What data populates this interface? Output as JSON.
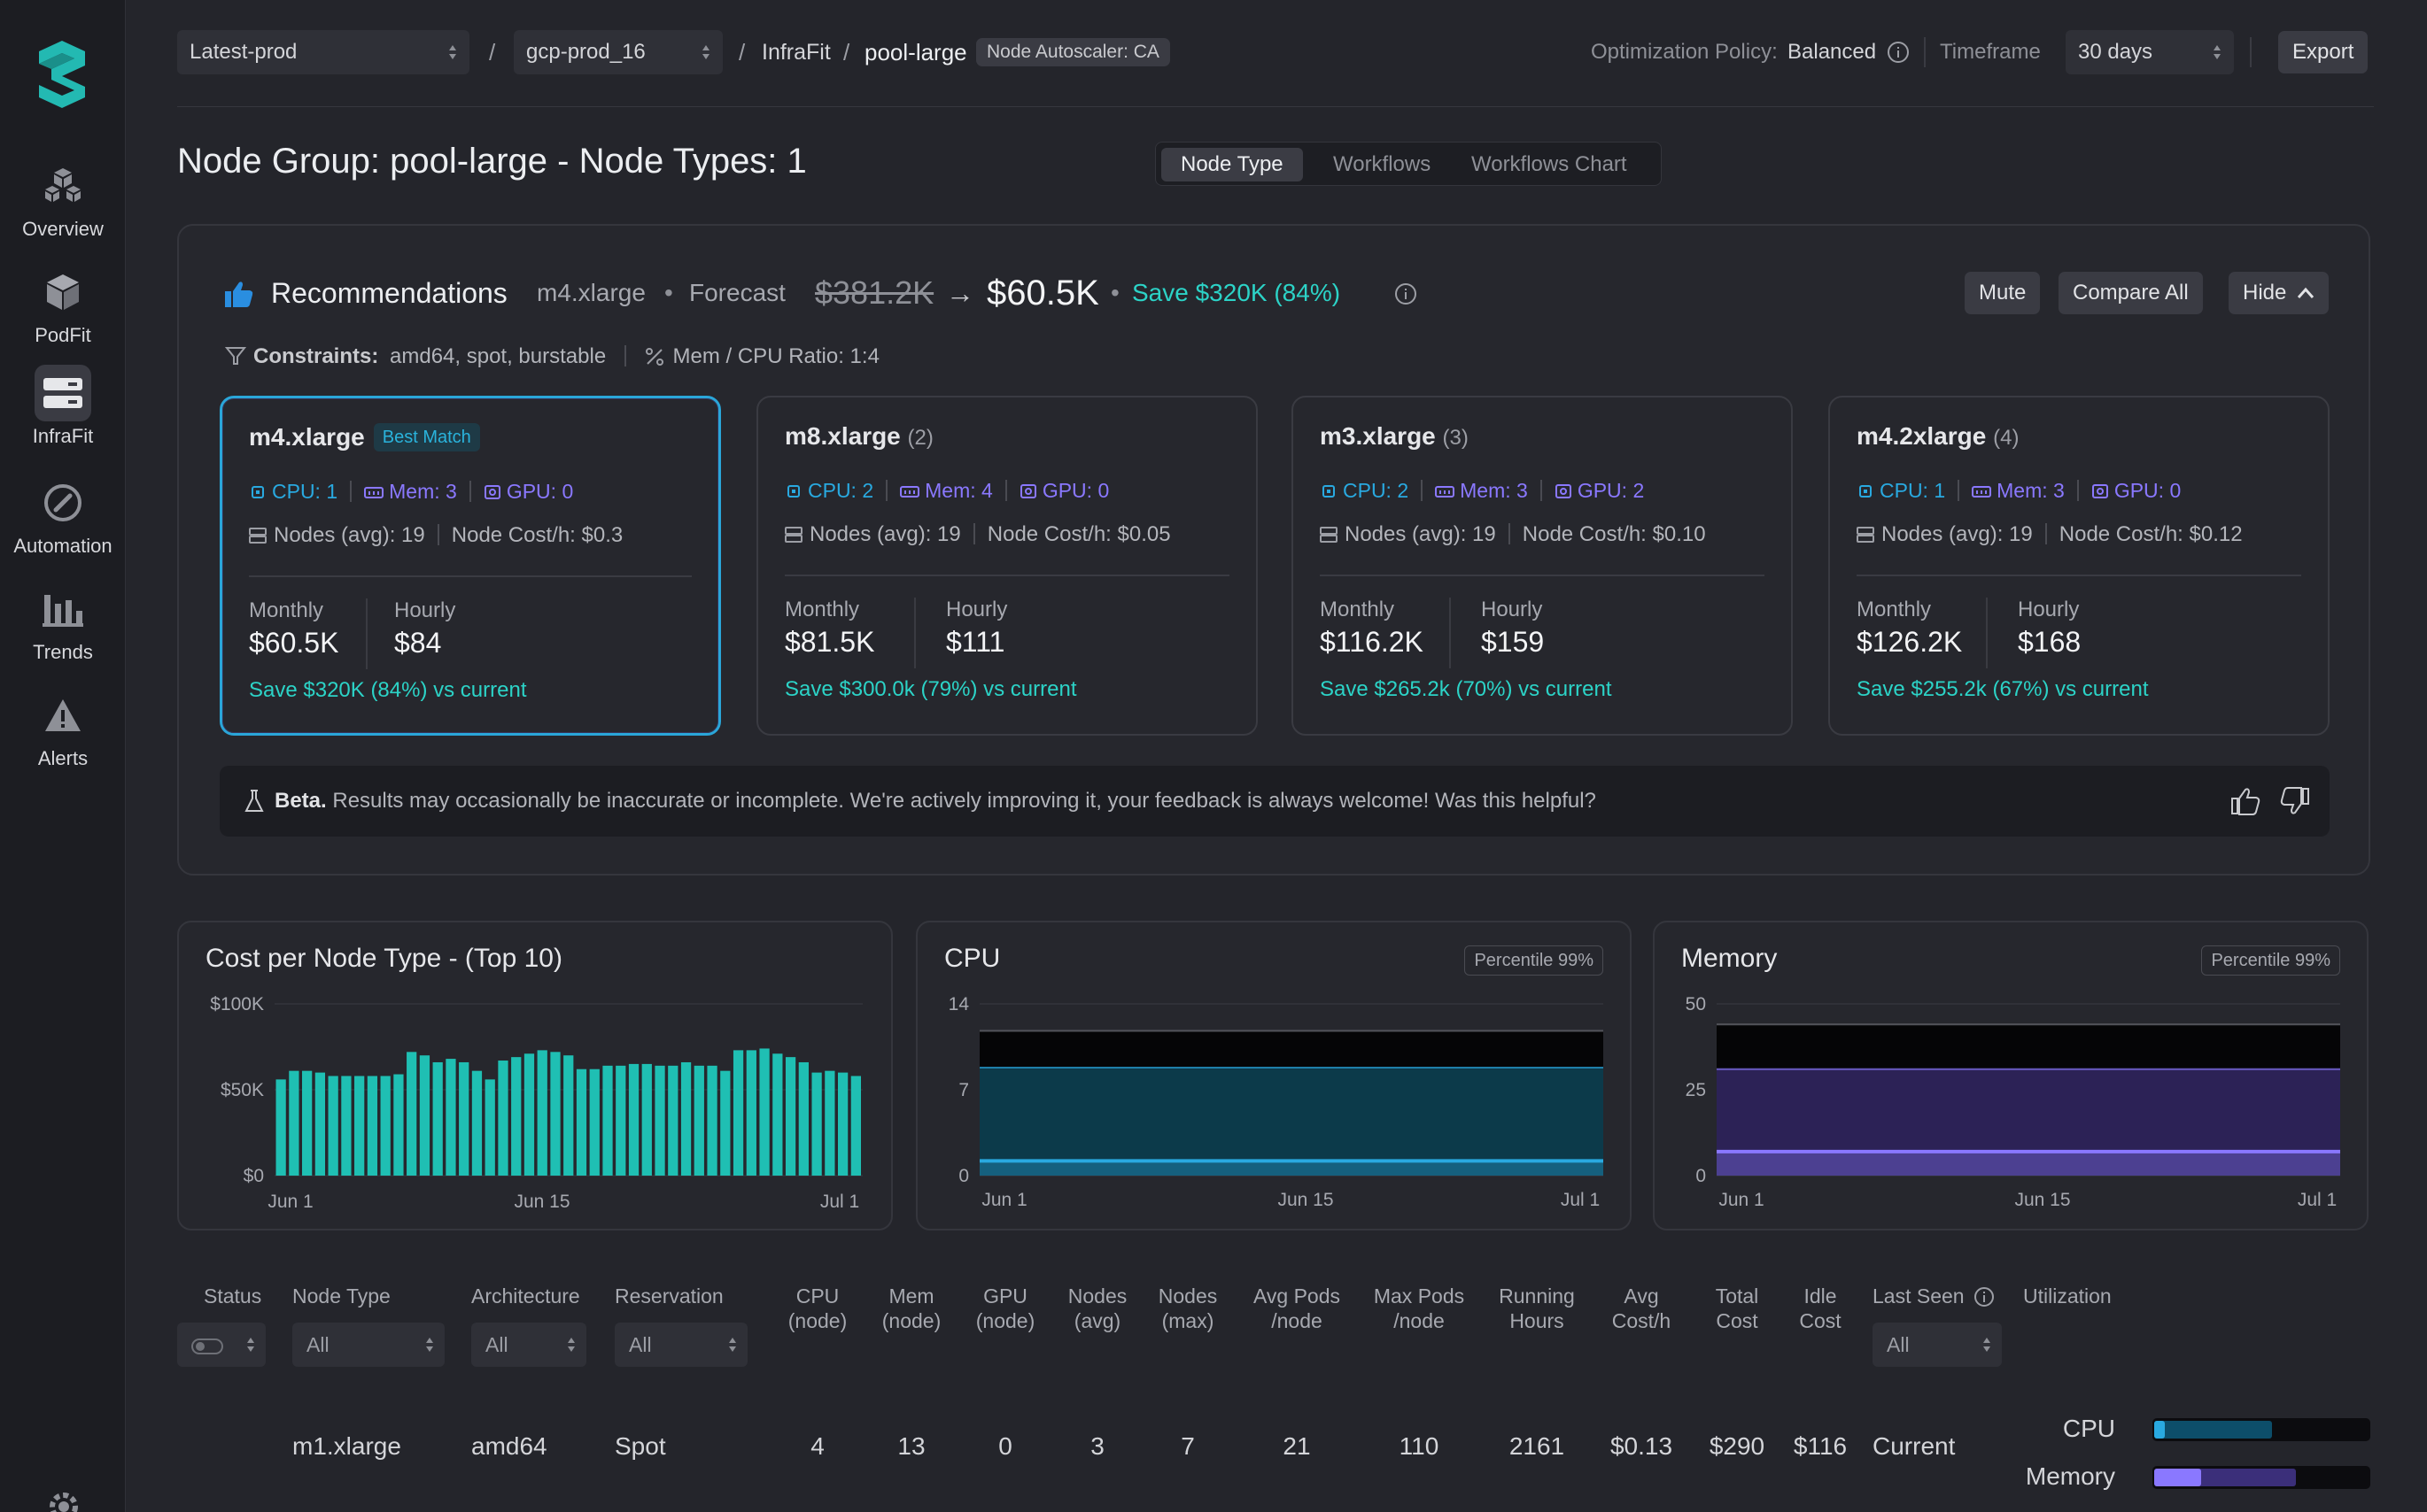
{
  "nav": {
    "items": [
      {
        "label": "Overview",
        "icon": "cubes-icon"
      },
      {
        "label": "PodFit",
        "icon": "cube-icon"
      },
      {
        "label": "InfraFit",
        "icon": "server-icon"
      },
      {
        "label": "Automation",
        "icon": "compass-icon"
      },
      {
        "label": "Trends",
        "icon": "bar-chart-icon"
      },
      {
        "label": "Alerts",
        "icon": "warning-icon"
      }
    ],
    "active": "InfraFit"
  },
  "topbar": {
    "env_select": "Latest-prod",
    "cluster_select": "gcp-prod_16",
    "sep": "/",
    "crumb_infrafit": "InfraFit",
    "crumb_pool": "pool-large",
    "autoscaler_pill": "Node Autoscaler: CA",
    "policy_label": "Optimization Policy:",
    "policy_value": "Balanced",
    "timeframe_label": "Timeframe",
    "timeframe_value": "30 days",
    "export_label": "Export"
  },
  "page": {
    "title": "Node Group: pool-large - Node Types: 1",
    "tabs": [
      "Node Type",
      "Workflows",
      "Workflows Chart"
    ],
    "active_tab": "Node Type"
  },
  "recommendations": {
    "title": "Recommendations",
    "instance": "m4.xlarge",
    "bullet": "•",
    "forecast_label": "Forecast",
    "forecast_old": "$381.2K",
    "arrow": "→",
    "forecast_new": "$60.5K",
    "save_text": "Save $320K (84%)",
    "mute_label": "Mute",
    "compare_label": "Compare All",
    "hide_label": "Hide",
    "constraints_label": "Constraints:",
    "constraints_value": "amd64, spot, burstable",
    "ratio_text": "Mem / CPU Ratio: 1:4",
    "cards": [
      {
        "name": "m4.xlarge",
        "rank": "",
        "badge": "Best Match",
        "cpu": "CPU: 1",
        "mem": "Mem: 3",
        "gpu": "GPU: 0",
        "nodes": "Nodes (avg): 19",
        "cost": "Node Cost/h: $0.3",
        "monthly_label": "Monthly",
        "monthly": "$60.5K",
        "hourly_label": "Hourly",
        "hourly": "$84",
        "save": "Save $320K (84%) vs current"
      },
      {
        "name": "m8.xlarge",
        "rank": "(2)",
        "badge": "",
        "cpu": "CPU: 2",
        "mem": "Mem: 4",
        "gpu": "GPU: 0",
        "nodes": "Nodes (avg): 19",
        "cost": "Node Cost/h: $0.05",
        "monthly_label": "Monthly",
        "monthly": "$81.5K",
        "hourly_label": "Hourly",
        "hourly": "$111",
        "save": "Save $300.0k (79%) vs current"
      },
      {
        "name": "m3.xlarge",
        "rank": "(3)",
        "badge": "",
        "cpu": "CPU: 2",
        "mem": "Mem: 3",
        "gpu": "GPU: 2",
        "nodes": "Nodes (avg): 19",
        "cost": "Node Cost/h: $0.10",
        "monthly_label": "Monthly",
        "monthly": "$116.2K",
        "hourly_label": "Hourly",
        "hourly": "$159",
        "save": "Save $265.2k (70%) vs current"
      },
      {
        "name": "m4.2xlarge",
        "rank": "(4)",
        "badge": "",
        "cpu": "CPU: 1",
        "mem": "Mem: 3",
        "gpu": "GPU: 0",
        "nodes": "Nodes (avg): 19",
        "cost": "Node Cost/h: $0.12",
        "monthly_label": "Monthly",
        "monthly": "$126.2K",
        "hourly_label": "Hourly",
        "hourly": "$168",
        "save": "Save $255.2k (67%) vs current"
      }
    ],
    "beta_label": "Beta.",
    "beta_text": "Results may occasionally be inaccurate or incomplete. We're actively improving it, your feedback is always welcome! Was this helpful?"
  },
  "colors": {
    "accent_teal": "#2cd3c7",
    "cpu_blue": "#29a9e0",
    "mem_purple": "#8a78ff",
    "bar_teal": "#1fbfb3"
  },
  "chart_data": [
    {
      "type": "bar",
      "title": "Cost per Node Type - (Top 10)",
      "x_ticks": [
        "Jun 1",
        "Jun 15",
        "Jul 1"
      ],
      "y_ticks": [
        "$100K",
        "$50K",
        "$0"
      ],
      "ylim": [
        0,
        100000
      ],
      "values": [
        56000,
        61000,
        61000,
        60000,
        58000,
        58000,
        58000,
        58000,
        58000,
        59000,
        72000,
        70000,
        66000,
        68000,
        66000,
        61000,
        56000,
        67000,
        69000,
        71000,
        73000,
        72000,
        70000,
        62000,
        62000,
        64000,
        64000,
        65000,
        65000,
        64000,
        64000,
        66000,
        64000,
        64000,
        61000,
        73000,
        73000,
        74000,
        71000,
        69000,
        66000,
        60000,
        61000,
        60000,
        58000
      ],
      "color": "#1fbfb3"
    },
    {
      "type": "area",
      "title": "CPU",
      "tag": "Percentile 99%",
      "x_ticks": [
        "Jun 1",
        "Jun 15",
        "Jul 1"
      ],
      "y_ticks": [
        "14",
        "7",
        "0"
      ],
      "ylim": [
        0,
        14
      ],
      "series": [
        {
          "name": "",
          "value": 11.8,
          "color": "#050506"
        },
        {
          "name": "",
          "value": 8.8,
          "color": "#0c3a4a"
        },
        {
          "name": "",
          "value": 1.2,
          "color": "#29a9e0"
        }
      ]
    },
    {
      "type": "area",
      "title": "Memory",
      "tag": "Percentile 99%",
      "x_ticks": [
        "Jun 1",
        "Jun 15",
        "Jul 1"
      ],
      "y_ticks": [
        "50",
        "25",
        "0"
      ],
      "ylim": [
        0,
        50
      ],
      "series": [
        {
          "name": "",
          "value": 44,
          "color": "#050506"
        },
        {
          "name": "",
          "value": 31,
          "color": "#2c2256"
        },
        {
          "name": "",
          "value": 7,
          "color": "#8a78ff"
        }
      ]
    }
  ],
  "table": {
    "headers": {
      "status": "Status",
      "node_type": "Node Type",
      "architecture": "Architecture",
      "reservation": "Reservation",
      "cpu1": "CPU",
      "cpu2": "(node)",
      "mem1": "Mem",
      "mem2": "(node)",
      "gpu1": "GPU",
      "gpu2": "(node)",
      "navg1": "Nodes",
      "navg2": "(avg)",
      "nmax1": "Nodes",
      "nmax2": "(max)",
      "apods1": "Avg Pods",
      "apods2": "/node",
      "mpods1": "Max Pods",
      "mpods2": "/node",
      "rh1": "Running",
      "rh2": "Hours",
      "ac1": "Avg",
      "ac2": "Cost/h",
      "tc1": "Total",
      "tc2": "Cost",
      "ic1": "Idle",
      "ic2": "Cost",
      "last_seen": "Last Seen",
      "utilization": "Utilization"
    },
    "filter_all": "All",
    "row": {
      "node_type": "m1.xlarge",
      "architecture": "amd64",
      "reservation": "Spot",
      "cpu": "4",
      "mem": "13",
      "gpu": "0",
      "nodes_avg": "3",
      "nodes_max": "7",
      "avg_pods": "21",
      "max_pods": "110",
      "running_hours": "2161",
      "avg_cost": "$0.13",
      "total_cost": "$290",
      "idle_cost": "$116",
      "last_seen": "Current",
      "util_cpu_label": "CPU",
      "util_mem_label": "Memory",
      "util_cpu_used": 0.05,
      "util_cpu_req": 0.55,
      "util_mem_used": 0.22,
      "util_mem_req": 0.66
    }
  }
}
